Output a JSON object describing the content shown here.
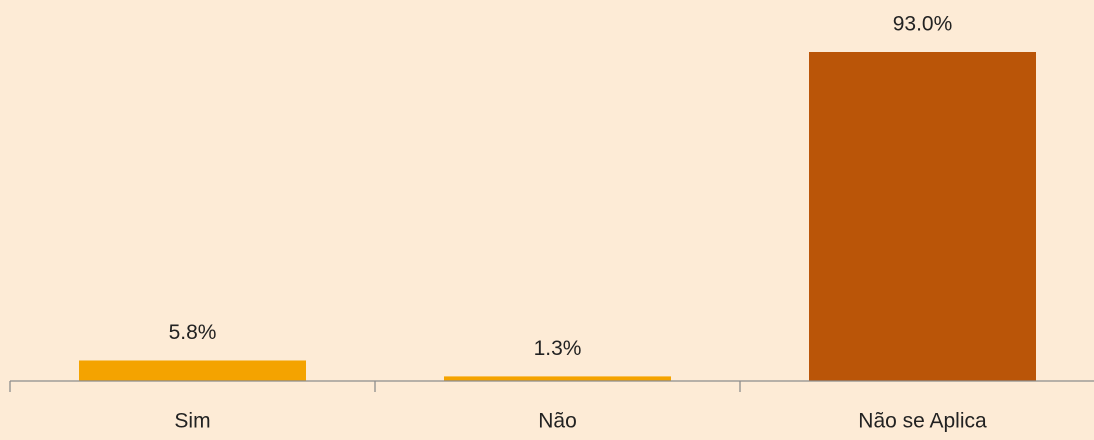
{
  "chart_data": {
    "type": "bar",
    "categories": [
      "Sim",
      "Não",
      "Não se Aplica"
    ],
    "values": [
      5.8,
      1.3,
      93.0
    ],
    "value_labels": [
      "5.8%",
      "1.3%",
      "93.0%"
    ],
    "colors": [
      "#f4a300",
      "#f4a300",
      "#ba5508"
    ]
  }
}
